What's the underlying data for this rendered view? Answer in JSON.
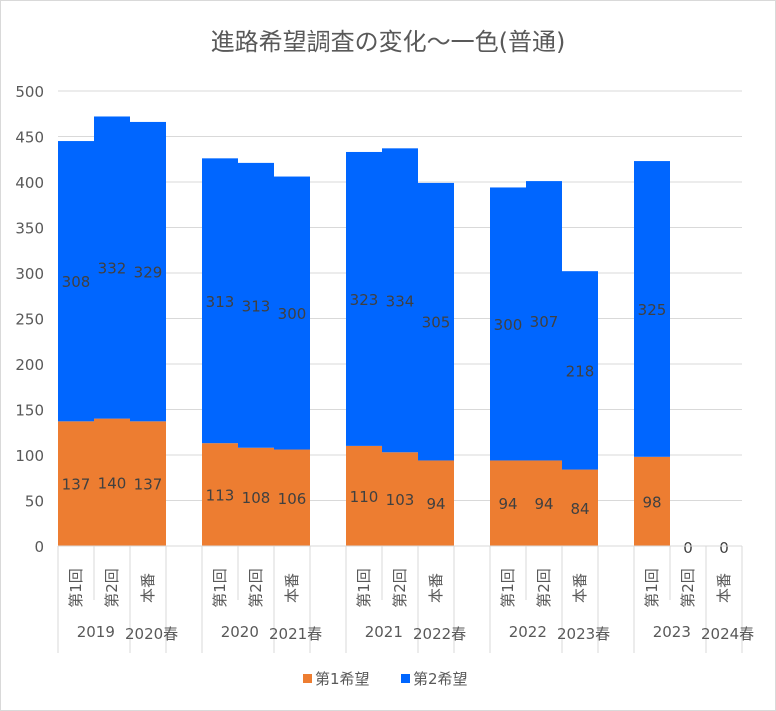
{
  "chart_data": {
    "type": "bar",
    "stacked": true,
    "title": "進路希望調査の変化～一色(普通)",
    "ylim": [
      0,
      500
    ],
    "yticks": [
      0,
      50,
      100,
      150,
      200,
      250,
      300,
      350,
      400,
      450,
      500
    ],
    "grid": true,
    "legend_position": "bottom",
    "groups": [
      {
        "year": "2019",
        "season": "2020春",
        "categories": [
          "第1回",
          "第2回",
          "本番"
        ]
      },
      {
        "year": "2020",
        "season": "2021春",
        "categories": [
          "第1回",
          "第2回",
          "本番"
        ]
      },
      {
        "year": "2021",
        "season": "2022春",
        "categories": [
          "第1回",
          "第2回",
          "本番"
        ]
      },
      {
        "year": "2022",
        "season": "2023春",
        "categories": [
          "第1回",
          "第2回",
          "本番"
        ]
      },
      {
        "year": "2023",
        "season": "2024春",
        "categories": [
          "第1回",
          "第2回",
          "本番"
        ]
      }
    ],
    "series": [
      {
        "name": "第1希望",
        "color": "#ED7D31",
        "values": [
          137,
          140,
          137,
          113,
          108,
          106,
          110,
          103,
          94,
          94,
          94,
          84,
          98,
          0,
          0
        ]
      },
      {
        "name": "第2希望",
        "color": "#0066FF",
        "values": [
          308,
          332,
          329,
          313,
          313,
          300,
          323,
          334,
          305,
          300,
          307,
          218,
          325,
          0,
          0
        ]
      }
    ]
  }
}
